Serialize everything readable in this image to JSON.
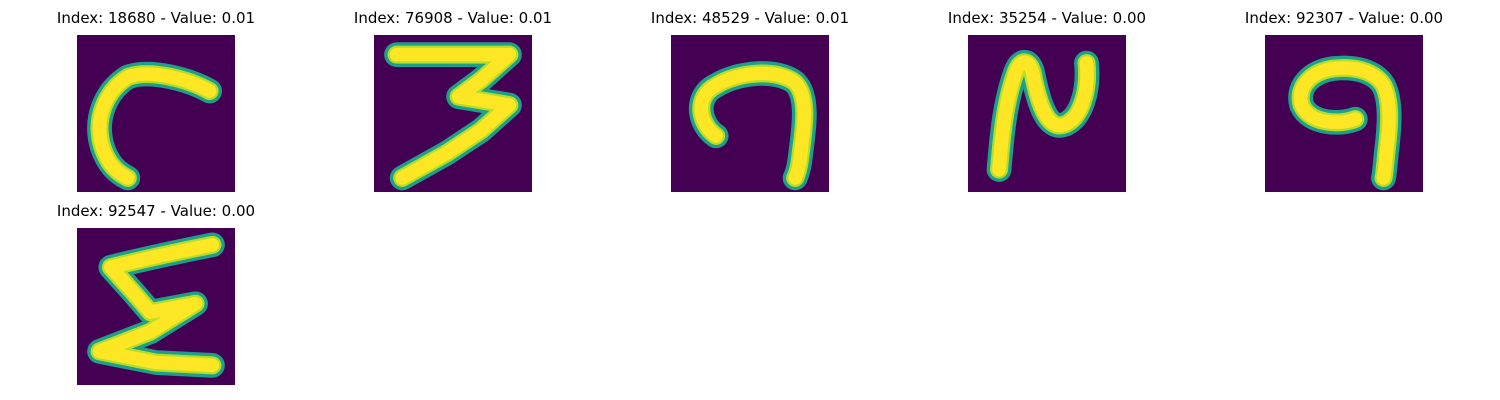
{
  "colors": {
    "background": "#440154",
    "stroke_inner": "#fde725",
    "stroke_mid": "#b5de2b",
    "stroke_outer": "#1f9e89"
  },
  "panels": [
    {
      "title": "Index: 18680 - Value: 0.01",
      "glyph": "curve-c"
    },
    {
      "title": "Index: 76908 - Value: 0.01",
      "glyph": "three"
    },
    {
      "title": "Index: 48529 - Value: 0.01",
      "glyph": "hook-n"
    },
    {
      "title": "Index: 35254 - Value: 0.00",
      "glyph": "n-loop"
    },
    {
      "title": "Index: 92307 - Value: 0.00",
      "glyph": "nine-loop"
    },
    {
      "title": "Index: 92547 - Value: 0.00",
      "glyph": "sigma"
    }
  ]
}
